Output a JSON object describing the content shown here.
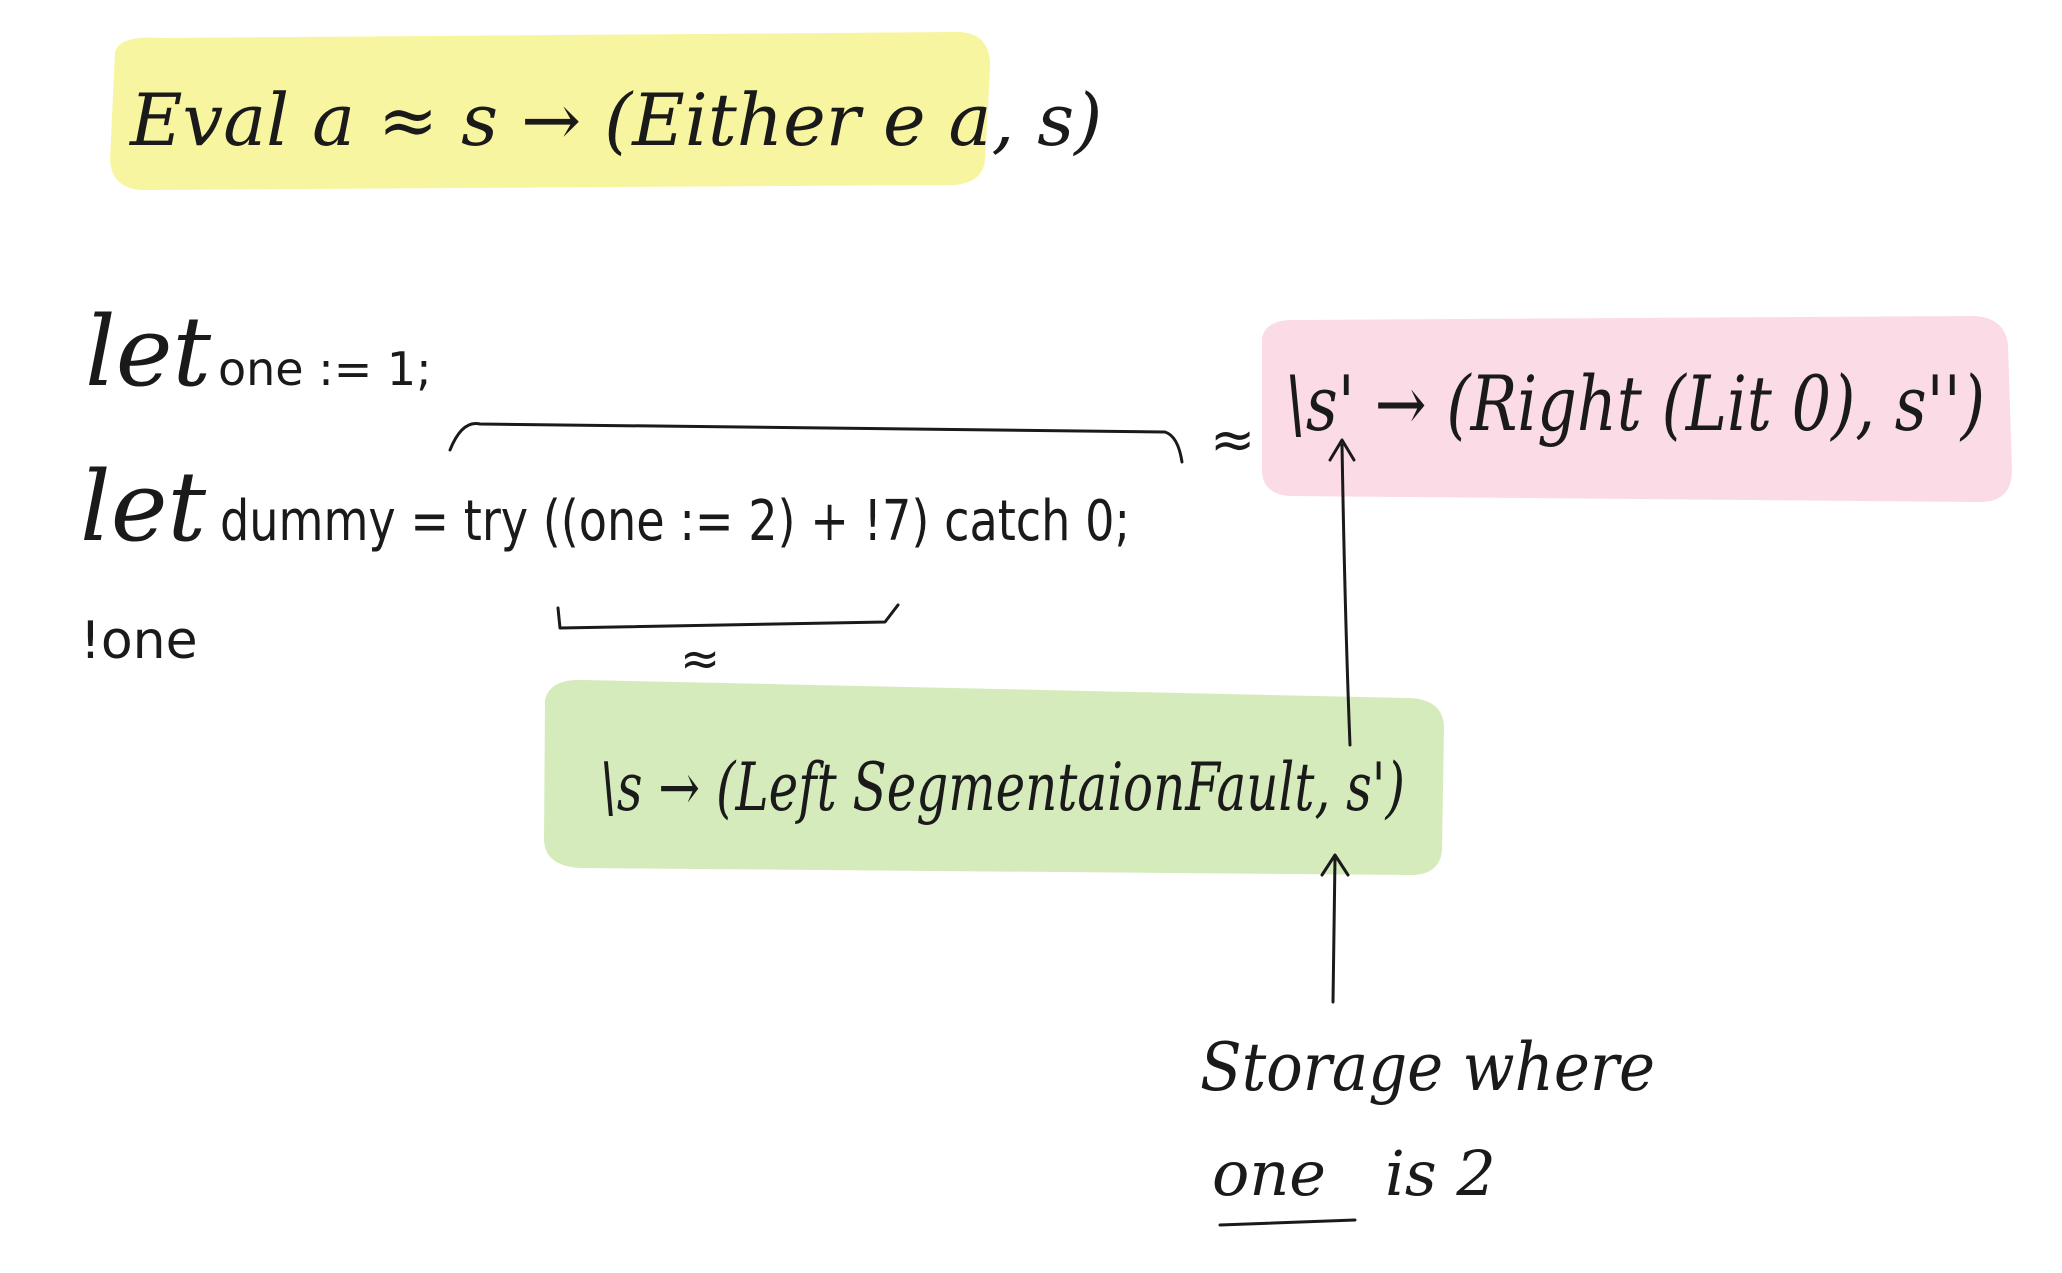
{
  "colors": {
    "yellow_highlight": "#f8f5a0",
    "pink_highlight": "#fbdbe6",
    "green_highlight": "#d6ebbc",
    "ink": "#1a1a1a"
  },
  "title": {
    "text": "Eval a ≈ s → (Either e a, s)"
  },
  "code": {
    "line1": {
      "keyword": "let",
      "rest": "one := 1;"
    },
    "line2": {
      "keyword": "let",
      "rest": "dummy = try ((one := 2) + !7) catch 0;"
    },
    "line3": {
      "text": "!one"
    }
  },
  "pink_box": {
    "approx": "≈",
    "text": "\\s' → (Right (Lit 0), s'')"
  },
  "green_box": {
    "approx": "≈",
    "text": "\\s → (Left SegmentaionFault, s')"
  },
  "annotation": {
    "line1": "Storage where",
    "line2_underlined": "one",
    "line2_rest": "is 2"
  }
}
